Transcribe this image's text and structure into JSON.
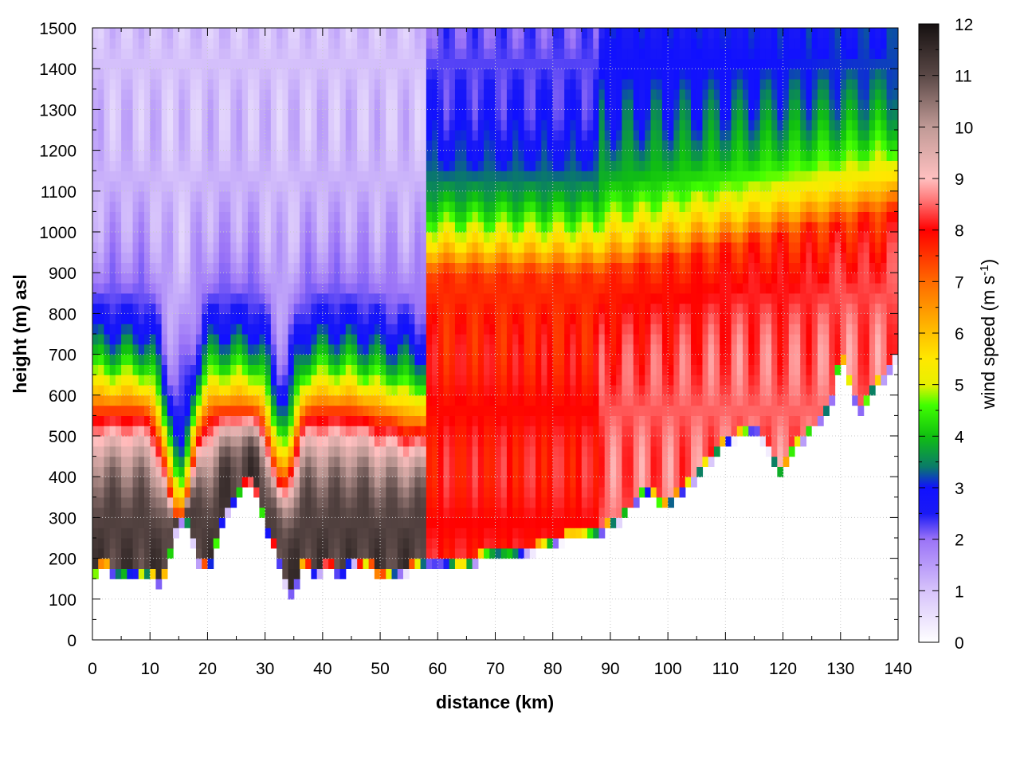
{
  "chart_data": {
    "type": "heatmap",
    "description_kind": "vertical cross-section of wind speed vs distance and height",
    "xlabel": "distance (km)",
    "ylabel": "height (m) asl",
    "colorbar_label": "wind speed (m s",
    "colorbar_label_sup": "-1",
    "colorbar_label_end": ")",
    "xlim": [
      0,
      140
    ],
    "ylim": [
      0,
      1500
    ],
    "clim": [
      0,
      12
    ],
    "x_ticks": [
      0,
      10,
      20,
      30,
      40,
      50,
      60,
      70,
      80,
      90,
      100,
      110,
      120,
      130,
      140
    ],
    "x_tick_labels": [
      "0",
      "10",
      "20",
      "30",
      "40",
      "50",
      "60",
      "70",
      "80",
      "90",
      "100",
      "110",
      "120",
      "130",
      "140"
    ],
    "y_ticks": [
      0,
      100,
      200,
      300,
      400,
      500,
      600,
      700,
      800,
      900,
      1000,
      1100,
      1200,
      1300,
      1400,
      1500
    ],
    "y_tick_labels": [
      "0",
      "100",
      "200",
      "300",
      "400",
      "500",
      "600",
      "700",
      "800",
      "900",
      "1000",
      "1100",
      "1200",
      "1300",
      "1400",
      "1500"
    ],
    "colorbar_ticks": [
      0,
      1,
      2,
      3,
      4,
      5,
      6,
      7,
      8,
      9,
      10,
      11,
      12
    ],
    "colorbar_tick_labels": [
      "0",
      "1",
      "2",
      "3",
      "4",
      "5",
      "6",
      "7",
      "8",
      "9",
      "10",
      "11",
      "12"
    ],
    "grid": true,
    "colormap": [
      [
        0,
        "#ffffff"
      ],
      [
        1,
        "#d7c3fb"
      ],
      [
        2,
        "#9a73f7"
      ],
      [
        2.5,
        "#1a1af5"
      ],
      [
        3,
        "#1010ff"
      ],
      [
        3.4,
        "#0a7a6a"
      ],
      [
        4,
        "#10c010"
      ],
      [
        4.6,
        "#40ff00"
      ],
      [
        5,
        "#e8f000"
      ],
      [
        5.5,
        "#ffe800"
      ],
      [
        6,
        "#ffc000"
      ],
      [
        7,
        "#ff6a00"
      ],
      [
        8,
        "#ff0000"
      ],
      [
        8.6,
        "#ff7a7a"
      ],
      [
        9,
        "#ffc0c0"
      ],
      [
        10,
        "#c09a96"
      ],
      [
        11,
        "#5a4846"
      ],
      [
        12,
        "#151010"
      ]
    ],
    "terrain_profile": {
      "x": [
        0,
        1,
        2,
        3,
        4,
        5,
        6,
        7,
        8,
        9,
        10,
        11,
        12,
        13,
        14,
        15,
        16,
        17,
        18,
        19,
        20,
        21,
        22,
        23,
        24,
        25,
        26,
        27,
        28,
        29,
        30,
        31,
        32,
        33,
        34,
        35,
        36,
        37,
        38,
        39,
        40,
        41,
        42,
        43,
        44,
        45,
        46,
        47,
        48,
        49,
        50,
        52,
        55,
        58,
        60,
        62,
        64,
        66,
        68,
        70,
        72,
        75,
        78,
        80,
        82,
        85,
        88,
        90,
        92,
        94,
        95,
        96,
        97,
        98,
        99,
        100,
        102,
        104,
        106,
        108,
        110,
        112,
        113,
        114,
        115,
        116,
        117,
        118,
        119,
        120,
        121,
        122,
        124,
        126,
        128,
        129,
        130,
        131,
        132,
        133,
        134,
        135,
        136,
        138,
        140
      ],
      "y": [
        140,
        160,
        180,
        160,
        150,
        155,
        150,
        160,
        150,
        145,
        160,
        135,
        130,
        160,
        240,
        280,
        285,
        270,
        200,
        165,
        170,
        190,
        260,
        300,
        320,
        340,
        360,
        370,
        360,
        320,
        280,
        230,
        200,
        160,
        110,
        105,
        160,
        180,
        150,
        160,
        160,
        170,
        160,
        150,
        160,
        200,
        170,
        160,
        185,
        150,
        140,
        150,
        165,
        180,
        180,
        175,
        165,
        175,
        195,
        200,
        195,
        205,
        215,
        225,
        240,
        240,
        250,
        270,
        290,
        320,
        340,
        355,
        350,
        330,
        310,
        320,
        345,
        375,
        410,
        440,
        475,
        490,
        490,
        500,
        510,
        500,
        470,
        450,
        400,
        400,
        430,
        460,
        490,
        520,
        560,
        600,
        690,
        640,
        600,
        560,
        550,
        590,
        610,
        640,
        700
      ]
    }
  }
}
